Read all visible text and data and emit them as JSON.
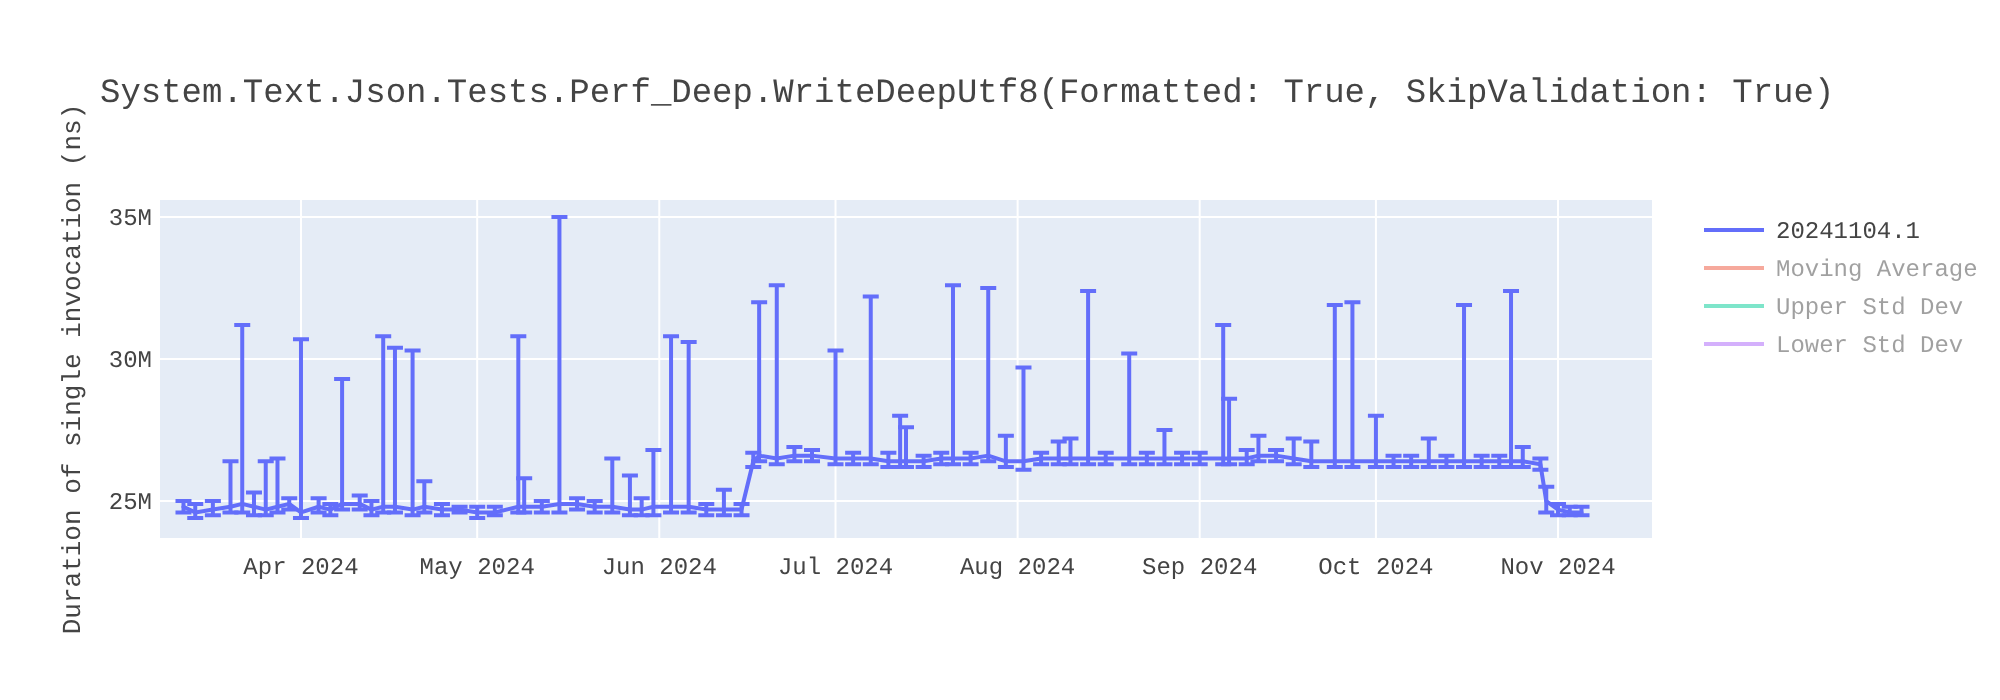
{
  "chart_data": {
    "type": "line",
    "title": "System.Text.Json.Tests.Perf_Deep.WriteDeepUtf8(Formatted: True, SkipValidation: True)",
    "ylabel": "Duration of single invocation (ns)",
    "x": [
      "2024-03-12",
      "2024-03-14",
      "2024-03-17",
      "2024-03-20",
      "2024-03-22",
      "2024-03-24",
      "2024-03-26",
      "2024-03-28",
      "2024-03-30",
      "2024-04-01",
      "2024-04-04",
      "2024-04-06",
      "2024-04-08",
      "2024-04-11",
      "2024-04-13",
      "2024-04-15",
      "2024-04-17",
      "2024-04-20",
      "2024-04-22",
      "2024-04-25",
      "2024-04-28",
      "2024-05-01",
      "2024-05-04",
      "2024-05-08",
      "2024-05-09",
      "2024-05-12",
      "2024-05-15",
      "2024-05-18",
      "2024-05-21",
      "2024-05-24",
      "2024-05-27",
      "2024-05-29",
      "2024-05-31",
      "2024-06-03",
      "2024-06-06",
      "2024-06-09",
      "2024-06-12",
      "2024-06-15",
      "2024-06-17",
      "2024-06-18",
      "2024-06-21",
      "2024-06-24",
      "2024-06-27",
      "2024-07-01",
      "2024-07-04",
      "2024-07-07",
      "2024-07-10",
      "2024-07-12",
      "2024-07-13",
      "2024-07-16",
      "2024-07-19",
      "2024-07-21",
      "2024-07-24",
      "2024-07-27",
      "2024-07-30",
      "2024-08-02",
      "2024-08-05",
      "2024-08-08",
      "2024-08-10",
      "2024-08-13",
      "2024-08-16",
      "2024-08-20",
      "2024-08-23",
      "2024-08-26",
      "2024-08-29",
      "2024-09-01",
      "2024-09-05",
      "2024-09-06",
      "2024-09-09",
      "2024-09-11",
      "2024-09-14",
      "2024-09-17",
      "2024-09-20",
      "2024-09-24",
      "2024-09-27",
      "2024-10-01",
      "2024-10-04",
      "2024-10-07",
      "2024-10-10",
      "2024-10-13",
      "2024-10-16",
      "2024-10-19",
      "2024-10-22",
      "2024-10-24",
      "2024-10-26",
      "2024-10-29",
      "2024-10-30",
      "2024-11-01",
      "2024-11-03",
      "2024-11-05"
    ],
    "series": [
      {
        "name": "20241104.1",
        "color": "#636efa",
        "values": [
          24800000,
          24600000,
          24700000,
          24800000,
          24900000,
          24800000,
          24700000,
          24800000,
          24900000,
          24600000,
          24800000,
          24700000,
          24900000,
          24900000,
          24700000,
          24800000,
          24800000,
          24700000,
          24800000,
          24700000,
          24700000,
          24600000,
          24600000,
          24800000,
          24800000,
          24800000,
          24900000,
          24900000,
          24800000,
          24800000,
          24700000,
          24700000,
          24800000,
          24800000,
          24800000,
          24700000,
          24700000,
          24700000,
          26400000,
          26600000,
          26500000,
          26600000,
          26600000,
          26500000,
          26500000,
          26500000,
          26400000,
          26400000,
          26400000,
          26400000,
          26500000,
          26500000,
          26500000,
          26600000,
          26400000,
          26400000,
          26500000,
          26500000,
          26500000,
          26500000,
          26500000,
          26500000,
          26500000,
          26500000,
          26500000,
          26500000,
          26500000,
          26500000,
          26500000,
          26600000,
          26600000,
          26500000,
          26400000,
          26400000,
          26400000,
          26400000,
          26400000,
          26400000,
          26400000,
          26400000,
          26400000,
          26400000,
          26400000,
          26400000,
          26400000,
          26300000,
          25000000,
          24700000,
          24600000,
          24600000
        ],
        "errors": [
          [
            24600000,
            25000000
          ],
          [
            24400000,
            24900000
          ],
          [
            24500000,
            25000000
          ],
          [
            24600000,
            26400000
          ],
          [
            24600000,
            31200000
          ],
          [
            24500000,
            25300000
          ],
          [
            24500000,
            26400000
          ],
          [
            24600000,
            26500000
          ],
          [
            24700000,
            25100000
          ],
          [
            24400000,
            30700000
          ],
          [
            24600000,
            25100000
          ],
          [
            24500000,
            24900000
          ],
          [
            24700000,
            29300000
          ],
          [
            24700000,
            25200000
          ],
          [
            24500000,
            25000000
          ],
          [
            24600000,
            30800000
          ],
          [
            24600000,
            30400000
          ],
          [
            24500000,
            30300000
          ],
          [
            24600000,
            25700000
          ],
          [
            24500000,
            24900000
          ],
          [
            24600000,
            24800000
          ],
          [
            24400000,
            24800000
          ],
          [
            24500000,
            24800000
          ],
          [
            24600000,
            30800000
          ],
          [
            24600000,
            25800000
          ],
          [
            24600000,
            25000000
          ],
          [
            24600000,
            35000000
          ],
          [
            24700000,
            25100000
          ],
          [
            24600000,
            25000000
          ],
          [
            24600000,
            26500000
          ],
          [
            24500000,
            25900000
          ],
          [
            24500000,
            25100000
          ],
          [
            24500000,
            26800000
          ],
          [
            24600000,
            30800000
          ],
          [
            24600000,
            30600000
          ],
          [
            24500000,
            24900000
          ],
          [
            24500000,
            25400000
          ],
          [
            24500000,
            24900000
          ],
          [
            26200000,
            26700000
          ],
          [
            26400000,
            32000000
          ],
          [
            26300000,
            32600000
          ],
          [
            26400000,
            26900000
          ],
          [
            26400000,
            26800000
          ],
          [
            26300000,
            30300000
          ],
          [
            26300000,
            26700000
          ],
          [
            26300000,
            32200000
          ],
          [
            26200000,
            26700000
          ],
          [
            26200000,
            28000000
          ],
          [
            26200000,
            27600000
          ],
          [
            26200000,
            26600000
          ],
          [
            26300000,
            26700000
          ],
          [
            26300000,
            32600000
          ],
          [
            26300000,
            26700000
          ],
          [
            26400000,
            32500000
          ],
          [
            26200000,
            27300000
          ],
          [
            26100000,
            29700000
          ],
          [
            26300000,
            26700000
          ],
          [
            26300000,
            27100000
          ],
          [
            26300000,
            27200000
          ],
          [
            26300000,
            32400000
          ],
          [
            26300000,
            26700000
          ],
          [
            26300000,
            30200000
          ],
          [
            26300000,
            26700000
          ],
          [
            26300000,
            27500000
          ],
          [
            26300000,
            26700000
          ],
          [
            26300000,
            26700000
          ],
          [
            26300000,
            31200000
          ],
          [
            26300000,
            28600000
          ],
          [
            26300000,
            26800000
          ],
          [
            26400000,
            27300000
          ],
          [
            26400000,
            26800000
          ],
          [
            26300000,
            27200000
          ],
          [
            26200000,
            27100000
          ],
          [
            26200000,
            31900000
          ],
          [
            26200000,
            32000000
          ],
          [
            26200000,
            28000000
          ],
          [
            26200000,
            26600000
          ],
          [
            26200000,
            26600000
          ],
          [
            26200000,
            27200000
          ],
          [
            26200000,
            26600000
          ],
          [
            26200000,
            31900000
          ],
          [
            26200000,
            26600000
          ],
          [
            26200000,
            26600000
          ],
          [
            26200000,
            32400000
          ],
          [
            26200000,
            26900000
          ],
          [
            26100000,
            26500000
          ],
          [
            24600000,
            25500000
          ],
          [
            24500000,
            24900000
          ],
          [
            24500000,
            24800000
          ],
          [
            24500000,
            24800000
          ]
        ]
      },
      {
        "name": "Moving Average",
        "color": "#ef553b",
        "values": [
          null,
          null,
          null,
          null,
          null,
          null,
          null,
          null,
          null,
          null,
          null,
          null,
          null,
          null,
          null,
          null,
          null,
          null,
          null,
          null,
          null,
          null,
          null,
          null,
          null,
          null,
          null,
          null,
          null,
          null,
          null,
          null,
          null,
          null,
          null,
          null,
          null,
          null,
          null,
          null,
          null,
          null,
          null,
          null,
          null,
          null,
          null,
          null,
          null,
          null,
          null,
          null,
          null,
          null,
          null,
          null,
          null,
          null,
          null,
          null,
          null,
          null,
          null,
          null,
          null,
          null,
          null,
          null,
          null,
          null,
          null,
          null,
          null,
          null,
          null,
          null,
          null,
          null,
          null,
          null,
          null,
          null,
          null,
          null,
          null,
          null,
          null,
          null,
          null,
          null
        ]
      },
      {
        "name": "Upper Std Dev",
        "color": "#00cc96",
        "values": [
          null,
          null,
          null,
          null,
          null,
          null,
          null,
          null,
          null,
          null,
          null,
          null,
          null,
          null,
          null,
          null,
          null,
          null,
          null,
          null,
          null,
          null,
          null,
          null,
          null,
          null,
          null,
          null,
          null,
          null,
          null,
          null,
          null,
          null,
          null,
          null,
          null,
          null,
          null,
          null,
          null,
          null,
          null,
          null,
          null,
          null,
          null,
          null,
          null,
          null,
          null,
          null,
          null,
          null,
          null,
          null,
          null,
          null,
          null,
          null,
          null,
          null,
          null,
          null,
          null,
          null,
          null,
          null,
          null,
          null,
          null,
          null,
          null,
          null,
          null,
          null,
          null,
          null,
          null,
          null,
          null,
          null,
          null,
          null,
          null,
          null,
          null,
          null,
          null,
          null
        ]
      },
      {
        "name": "Lower Std Dev",
        "color": "#ab63fa",
        "values": [
          null,
          null,
          null,
          null,
          null,
          null,
          null,
          null,
          null,
          null,
          null,
          null,
          null,
          null,
          null,
          null,
          null,
          null,
          null,
          null,
          null,
          null,
          null,
          null,
          null,
          null,
          null,
          null,
          null,
          null,
          null,
          null,
          null,
          null,
          null,
          null,
          null,
          null,
          null,
          null,
          null,
          null,
          null,
          null,
          null,
          null,
          null,
          null,
          null,
          null,
          null,
          null,
          null,
          null,
          null,
          null,
          null,
          null,
          null,
          null,
          null,
          null,
          null,
          null,
          null,
          null,
          null,
          null,
          null,
          null,
          null,
          null,
          null,
          null,
          null,
          null,
          null,
          null,
          null,
          null,
          null,
          null,
          null,
          null,
          null,
          null,
          null,
          null,
          null,
          null
        ]
      }
    ],
    "xlim": [
      "2024-03-08",
      "2024-11-17"
    ],
    "xticks": [
      {
        "value": "2024-04-01",
        "label": "Apr 2024"
      },
      {
        "value": "2024-05-01",
        "label": "May 2024"
      },
      {
        "value": "2024-06-01",
        "label": "Jun 2024"
      },
      {
        "value": "2024-07-01",
        "label": "Jul 2024"
      },
      {
        "value": "2024-08-01",
        "label": "Aug 2024"
      },
      {
        "value": "2024-09-01",
        "label": "Sep 2024"
      },
      {
        "value": "2024-10-01",
        "label": "Oct 2024"
      },
      {
        "value": "2024-11-01",
        "label": "Nov 2024"
      }
    ],
    "ylim": [
      23700000,
      35600000
    ],
    "yticks": [
      {
        "value": 25000000,
        "label": "25M"
      },
      {
        "value": 30000000,
        "label": "30M"
      },
      {
        "value": 35000000,
        "label": "35M"
      }
    ],
    "grid": true,
    "legend": "top right",
    "line_style": "solid",
    "marker": "none"
  }
}
